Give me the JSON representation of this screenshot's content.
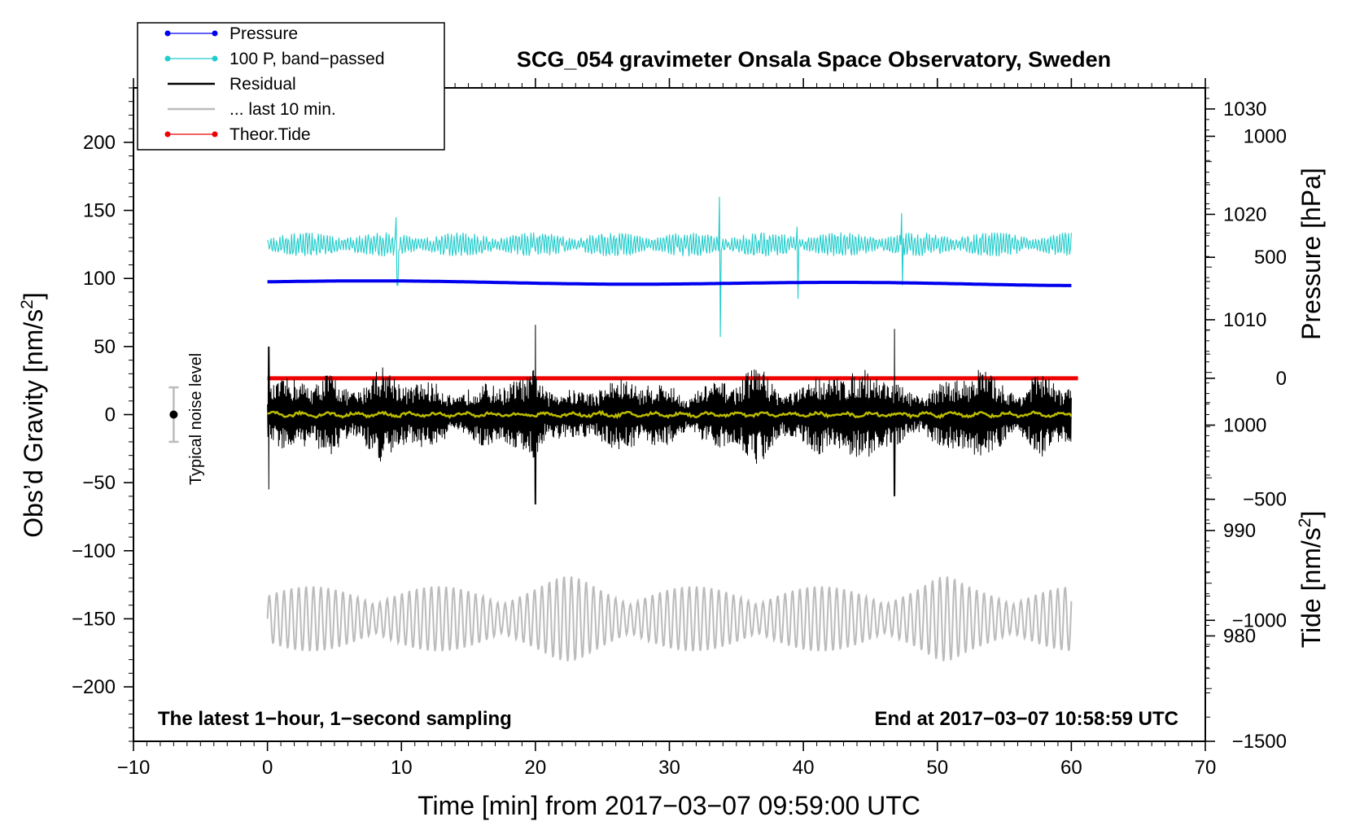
{
  "chart_data": {
    "type": "line",
    "title": "SCG_054 gravimeter Onsala Space Observatory, Sweden",
    "xlabel": "Time [min] from 2017−03−07 09:59:00 UTC",
    "ylabel_left": "Obs’d Gravity [nm/s²]",
    "ylabel_right_top": "Pressure [hPa]",
    "ylabel_right_bottom": "Tide [nm/s²]",
    "xlim": [
      -10,
      70
    ],
    "ylim": [
      -240,
      240
    ],
    "pressure_lim": [
      970,
      1032
    ],
    "tide_lim": [
      -1500,
      1200
    ],
    "x_ticks": [
      "−10",
      "0",
      "10",
      "20",
      "30",
      "40",
      "50",
      "60",
      "70"
    ],
    "x_tick_values": [
      -10,
      0,
      10,
      20,
      30,
      40,
      50,
      60,
      70
    ],
    "y_ticks": [
      "200",
      "150",
      "100",
      "50",
      "0",
      "−50",
      "−100",
      "−150",
      "−200"
    ],
    "y_tick_values": [
      200,
      150,
      100,
      50,
      0,
      -50,
      -100,
      -150,
      -200
    ],
    "pressure_ticks": [
      "1030",
      "1020",
      "1010",
      "1000",
      "990",
      "980"
    ],
    "pressure_tick_values": [
      1030,
      1020,
      1010,
      1000,
      990,
      980
    ],
    "tide_ticks": [
      "1000",
      "500",
      "0",
      "−500",
      "−1000",
      "−1500"
    ],
    "tide_tick_values": [
      1000,
      500,
      0,
      -500,
      -1000,
      -1500
    ],
    "legend": [
      "Pressure",
      "100 P, band−passed",
      "Residual",
      "... last 10 min.",
      "Theor.Tide"
    ],
    "legend_colors": [
      "#0000ee",
      "#22cccc",
      "#000000",
      "#bbbbbb",
      "#ee0000"
    ],
    "annotation_left": "The latest 1−hour, 1−second sampling",
    "annotation_right": "End at 2017−03−07 10:58:59 UTC",
    "noise_label": "Typical noise level",
    "noise_level": 20,
    "series": [
      {
        "name": "Pressure",
        "color": "#0000ee",
        "axis": "pressure",
        "x_range": [
          0,
          60
        ],
        "level": 1013.6
      },
      {
        "name": "100 P, band−passed",
        "color": "#22cccc",
        "axis": "gravity",
        "x_range": [
          0,
          60
        ],
        "offset": 125,
        "amplitude": 8,
        "spikes": [
          {
            "x": 9.7,
            "min": 95,
            "max": 145
          },
          {
            "x": 33.8,
            "min": 57,
            "max": 160
          },
          {
            "x": 39.6,
            "min": 85,
            "max": 138
          },
          {
            "x": 47.4,
            "min": 95,
            "max": 148
          }
        ]
      },
      {
        "name": "Residual",
        "color": "#000000",
        "axis": "gravity",
        "x_range": [
          0,
          60
        ],
        "offset": 0,
        "amplitude": 30,
        "peaks": [
          {
            "x": 20.0,
            "min": -66,
            "max": 66
          },
          {
            "x": 46.8,
            "min": -60,
            "max": 63
          },
          {
            "x": 0.1,
            "min": -55,
            "max": 50
          }
        ]
      },
      {
        "name": "Residual (smoothed)",
        "color": "#bbbb00",
        "axis": "gravity",
        "x_range": [
          0,
          60
        ],
        "offset": 0,
        "amplitude": 2
      },
      {
        "name": "... last 10 min.",
        "color": "#bbbbbb",
        "axis": "gravity",
        "x_range": [
          0,
          60
        ],
        "offset": -150,
        "amplitude": 30,
        "range": [
          -195,
          -100
        ]
      },
      {
        "name": "Theor.Tide",
        "color": "#ee0000",
        "axis": "tide",
        "x_range": [
          0,
          60.5
        ],
        "values": [
          0,
          0
        ]
      }
    ]
  }
}
